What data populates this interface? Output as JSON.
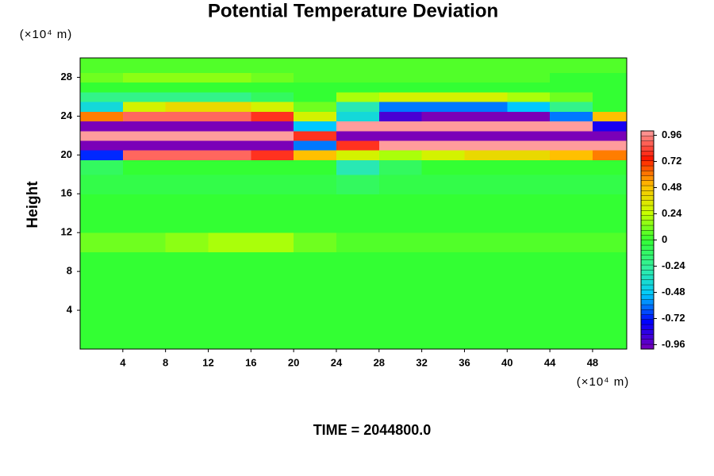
{
  "chart_data": {
    "type": "heatmap",
    "title": "Potential Temperature Deviation",
    "y_label": "Height",
    "x_unit": "(×10⁴ m)",
    "y_unit": "(×10⁴ m)",
    "footer": "TIME = 2044800.0",
    "xlim": [
      0,
      51.2
    ],
    "ylim": [
      0,
      30
    ],
    "xticks": [
      4,
      8,
      12,
      16,
      20,
      24,
      28,
      32,
      36,
      40,
      44,
      48
    ],
    "yticks": [
      4,
      8,
      12,
      16,
      20,
      24,
      28
    ],
    "clim": [
      -1,
      1
    ],
    "cticks": [
      -0.96,
      -0.72,
      -0.48,
      -0.24,
      0,
      0.24,
      0.48,
      0.72,
      0.96
    ],
    "colormap": [
      "#7a00b8",
      "#0000ff",
      "#00c8ff",
      "#33f0a0",
      "#33ff33",
      "#c8ff00",
      "#ffc000",
      "#ff1800",
      "#ff9c9c"
    ],
    "x": [
      2,
      6,
      10,
      14,
      18,
      22,
      26,
      30,
      34,
      38,
      42,
      46,
      50
    ],
    "y": [
      1,
      3,
      5,
      7,
      9,
      11,
      13,
      15,
      17,
      19,
      20,
      21,
      22,
      23,
      24,
      25,
      26,
      27,
      28,
      29
    ],
    "z": [
      [
        0,
        0,
        0,
        0,
        0,
        0,
        0,
        0,
        0,
        0,
        0,
        0,
        0
      ],
      [
        0,
        0,
        0,
        0,
        0,
        0,
        0,
        0,
        0,
        0,
        0,
        0,
        0
      ],
      [
        0,
        0,
        0,
        0,
        0,
        0,
        0,
        0,
        0,
        0,
        0,
        0,
        0
      ],
      [
        0,
        0,
        0,
        0,
        0,
        0,
        0,
        0,
        0,
        0,
        0,
        0,
        0
      ],
      [
        0,
        0,
        0,
        0,
        0,
        0,
        0,
        0,
        0,
        0,
        0,
        0,
        0
      ],
      [
        0.1,
        0.1,
        0.15,
        0.2,
        0.2,
        0.1,
        0.05,
        0.05,
        0.05,
        0.05,
        0.05,
        0.05,
        0.05
      ],
      [
        0,
        0,
        0,
        0,
        0,
        0,
        0,
        0,
        0,
        0,
        0,
        0,
        0
      ],
      [
        0,
        0,
        0,
        0,
        0,
        0,
        0,
        0,
        0,
        0,
        0,
        0,
        0
      ],
      [
        -0.05,
        -0.05,
        -0.05,
        -0.05,
        -0.05,
        -0.05,
        -0.1,
        -0.05,
        -0.05,
        -0.05,
        -0.05,
        -0.05,
        -0.05
      ],
      [
        -0.1,
        0,
        0,
        0,
        0,
        0,
        -0.3,
        -0.1,
        0,
        0,
        0,
        0,
        0
      ],
      [
        -0.7,
        0.9,
        0.9,
        0.9,
        0.8,
        0.5,
        0.3,
        0.2,
        0.3,
        0.4,
        0.4,
        0.5,
        0.6
      ],
      [
        -1,
        -1,
        -1,
        -1,
        -1,
        -0.6,
        0.8,
        1,
        1,
        1,
        1,
        1,
        1
      ],
      [
        1,
        1,
        1,
        1,
        1,
        0.8,
        -1,
        -1,
        -1,
        -1,
        -1,
        -1,
        -1
      ],
      [
        -1,
        -1,
        -1,
        -1,
        -1,
        -0.5,
        1,
        1,
        1,
        1,
        1,
        1,
        -0.8
      ],
      [
        0.6,
        0.9,
        0.9,
        0.9,
        0.8,
        0.3,
        -0.4,
        -0.9,
        -1,
        -1,
        -1,
        -0.6,
        0.5
      ],
      [
        -0.4,
        0.3,
        0.4,
        0.4,
        0.3,
        0.1,
        -0.3,
        -0.6,
        -0.6,
        -0.6,
        -0.5,
        -0.2,
        0
      ],
      [
        -0.2,
        -0.2,
        -0.2,
        -0.2,
        -0.1,
        0,
        0.2,
        0.3,
        0.3,
        0.3,
        0.2,
        0.1,
        0
      ],
      [
        0,
        0,
        0,
        0,
        0,
        0,
        0,
        0,
        0,
        0,
        0,
        0,
        0
      ],
      [
        0.1,
        0.15,
        0.15,
        0.15,
        0.1,
        0.05,
        0.05,
        0.05,
        0.05,
        0.05,
        0.05,
        0,
        0
      ],
      [
        0.05,
        0.05,
        0.05,
        0.05,
        0.05,
        0.05,
        0.05,
        0.05,
        0.05,
        0.05,
        0.05,
        0.05,
        0.05
      ]
    ]
  }
}
